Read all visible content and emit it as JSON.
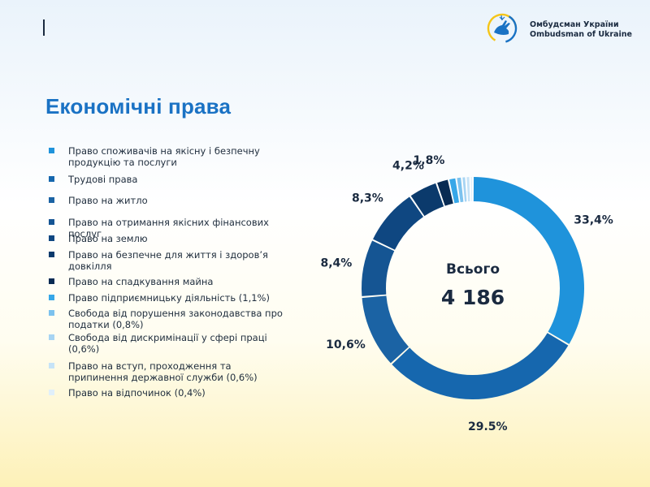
{
  "header": {
    "org_name_uk": "Омбудсман України",
    "org_name_en": "Ombudsman of Ukraine",
    "colors": {
      "brand_blue": "#1a72c4",
      "brand_yellow": "#f5c518"
    }
  },
  "page": {
    "title": "Економічні права"
  },
  "chart_data": {
    "type": "pie",
    "style": "donut",
    "total_label": "Всього",
    "total_value": "4 186",
    "categories": [
      "Право споживачів на якісну і безпечну продукцію та послуги",
      "Трудові права",
      "Право на житло",
      "Право на отримання якісних фінансових послуг",
      "Право на землю",
      "Право на безпечне для життя і здоров’я довкілля",
      "Право на спадкування майна",
      "Право підприємницьку діяльність (1,1%)",
      "Свобода від порушення законодавства про податки (0,8%)",
      "Свобода від дискримінації у сфері праці (0,6%)",
      "Право на вступ, проходження та припинення державної служби (0,6%)",
      "Право на відпочинок (0,4%)"
    ],
    "values": [
      33.4,
      29.5,
      10.6,
      8.4,
      8.3,
      4.2,
      1.8,
      1.1,
      0.8,
      0.6,
      0.6,
      0.4
    ],
    "data_labels": [
      "33,4%",
      "29,5%",
      "10,6%",
      "8,4%",
      "8,3%",
      "4,2%",
      "1,8%",
      "",
      "",
      "",
      "",
      ""
    ],
    "colors": [
      "#1f93db",
      "#1667ae",
      "#1b63a4",
      "#155593",
      "#0f4781",
      "#0b3a6c",
      "#082b53",
      "#37a7e8",
      "#7cc2ee",
      "#a7d4f3",
      "#c6e3f7",
      "#e0effa"
    ],
    "legend_position": "left"
  }
}
